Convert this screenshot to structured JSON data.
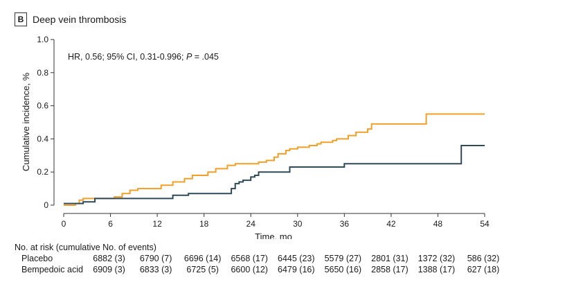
{
  "panel": {
    "letter": "B",
    "title": "Deep vein thrombosis"
  },
  "colors": {
    "placebo": "#f0a028",
    "bempedoic": "#2e4a58",
    "axis": "#333333"
  },
  "chart_data": {
    "type": "line",
    "step": true,
    "xlabel": "Time, mo",
    "ylabel": "Cumulative incidence, %",
    "xlim": [
      0,
      54
    ],
    "ylim": [
      0,
      1.0
    ],
    "xticks": [
      0,
      6,
      12,
      18,
      24,
      30,
      36,
      42,
      48,
      54
    ],
    "yticks": [
      0,
      0.2,
      0.4,
      0.6,
      0.8,
      1.0
    ],
    "ytick_labels": [
      "0",
      "0.2",
      "0.4",
      "0.6",
      "0.8",
      "1.0"
    ],
    "grid": false,
    "annotation": {
      "prefix": "HR, 0.56; 95% CI, 0.31-0.996; ",
      "italic": "P",
      "suffix": " = .045"
    },
    "series": [
      {
        "name": "Placebo",
        "points": [
          [
            0,
            0
          ],
          [
            1.5,
            0.01
          ],
          [
            2,
            0.03
          ],
          [
            2.5,
            0.04
          ],
          [
            6.5,
            0.05
          ],
          [
            7.5,
            0.07
          ],
          [
            8.5,
            0.09
          ],
          [
            9.5,
            0.1
          ],
          [
            12.5,
            0.12
          ],
          [
            14,
            0.14
          ],
          [
            15.5,
            0.16
          ],
          [
            16.5,
            0.18
          ],
          [
            18.5,
            0.2
          ],
          [
            19.5,
            0.22
          ],
          [
            21,
            0.24
          ],
          [
            22,
            0.25
          ],
          [
            25,
            0.26
          ],
          [
            26,
            0.27
          ],
          [
            27,
            0.29
          ],
          [
            27.5,
            0.31
          ],
          [
            28.5,
            0.33
          ],
          [
            29,
            0.34
          ],
          [
            30,
            0.35
          ],
          [
            31.5,
            0.36
          ],
          [
            32.5,
            0.37
          ],
          [
            33,
            0.38
          ],
          [
            34.5,
            0.39
          ],
          [
            35,
            0.4
          ],
          [
            36.5,
            0.42
          ],
          [
            37.5,
            0.44
          ],
          [
            39,
            0.46
          ],
          [
            39.5,
            0.49
          ],
          [
            46.5,
            0.55
          ],
          [
            54,
            0.55
          ]
        ]
      },
      {
        "name": "Bempedoic acid",
        "points": [
          [
            0,
            0.01
          ],
          [
            2.5,
            0.02
          ],
          [
            4,
            0.04
          ],
          [
            14,
            0.06
          ],
          [
            16,
            0.07
          ],
          [
            21.5,
            0.1
          ],
          [
            22,
            0.13
          ],
          [
            22.5,
            0.14
          ],
          [
            23,
            0.15
          ],
          [
            24,
            0.17
          ],
          [
            24.5,
            0.18
          ],
          [
            25,
            0.2
          ],
          [
            29,
            0.23
          ],
          [
            36,
            0.25
          ],
          [
            51,
            0.36
          ],
          [
            54,
            0.36
          ]
        ]
      }
    ]
  },
  "risk_table": {
    "title": "No. at risk (cumulative No. of events)",
    "times": [
      6,
      12,
      18,
      24,
      30,
      36,
      42,
      48,
      54
    ],
    "rows": [
      {
        "label": "Placebo",
        "cells": [
          "6882 (3)",
          "6790 (7)",
          "6696 (14)",
          "6568 (17)",
          "6445 (23)",
          "5579 (27)",
          "2801 (31)",
          "1372 (32)",
          "586 (32)"
        ]
      },
      {
        "label": "Bempedoic acid",
        "cells": [
          "6909 (3)",
          "6833 (3)",
          "6725 (5)",
          "6600 (12)",
          "6479 (16)",
          "5650 (16)",
          "2858 (17)",
          "1388 (17)",
          "627 (18)"
        ]
      }
    ]
  }
}
